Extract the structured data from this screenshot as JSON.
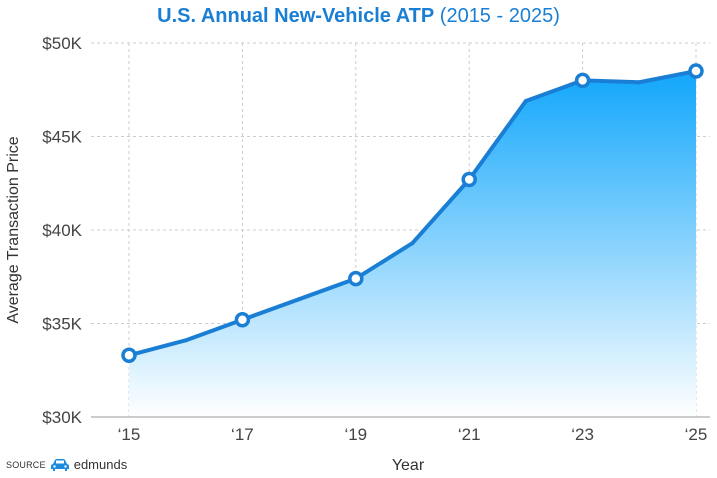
{
  "header": {
    "title_bold": "U.S. Annual New-Vehicle ATP",
    "title_light": "(2015 - 2025)"
  },
  "footer": {
    "source_label": "SOURCE",
    "brand_icon": "car-icon",
    "brand_name": "edmunds"
  },
  "colors": {
    "title": "#1a7fd4",
    "line": "#1a7fd4",
    "area_top": "#11a6fb",
    "area_bottom": "#ffffff",
    "grid": "#cccccc"
  },
  "chart_data": {
    "type": "area",
    "title": "U.S. Annual New-Vehicle ATP (2015 - 2025)",
    "xlabel": "Year",
    "ylabel": "Average Transaction Price",
    "x": [
      2015,
      2016,
      2017,
      2018,
      2019,
      2020,
      2021,
      2022,
      2023,
      2024,
      2025
    ],
    "series": [
      {
        "name": "Average Transaction Price",
        "values": [
          33.3,
          34.1,
          35.2,
          36.3,
          37.4,
          39.3,
          42.7,
          46.9,
          48.0,
          47.9,
          48.5
        ],
        "units": "thousand USD",
        "markers_at": [
          2015,
          2017,
          2019,
          2021,
          2023,
          2025
        ]
      }
    ],
    "ylim": [
      30,
      50
    ],
    "xlim": [
      2015,
      2025
    ],
    "yticks": [
      {
        "value": 50,
        "label": "$50K"
      },
      {
        "value": 45,
        "label": "$45K"
      },
      {
        "value": 40,
        "label": "$40K"
      },
      {
        "value": 35,
        "label": "$35K"
      },
      {
        "value": 30,
        "label": "$30K"
      }
    ],
    "xticks": [
      {
        "value": 2015,
        "label": "‘15"
      },
      {
        "value": 2017,
        "label": "‘17"
      },
      {
        "value": 2019,
        "label": "‘19"
      },
      {
        "value": 2021,
        "label": "‘21"
      },
      {
        "value": 2023,
        "label": "‘23"
      },
      {
        "value": 2025,
        "label": "‘25"
      }
    ],
    "grid": true,
    "legend": "none"
  }
}
